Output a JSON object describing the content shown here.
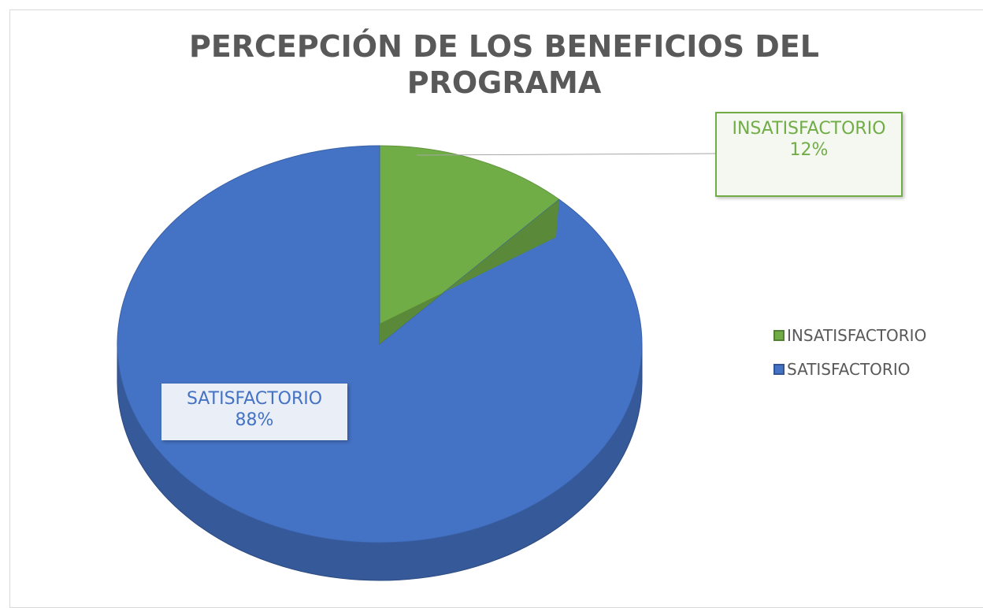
{
  "chart_data": {
    "type": "pie",
    "title": "PERCEPCIÓN DE LOS BENEFICIOS DEL PROGRAMA",
    "categories": [
      "INSATISFACTORIO",
      "SATISFACTORIO"
    ],
    "values": [
      12,
      88
    ],
    "value_labels": [
      "12%",
      "88%"
    ],
    "colors": [
      "#70ad47",
      "#4472c4"
    ],
    "legend": "right"
  }
}
